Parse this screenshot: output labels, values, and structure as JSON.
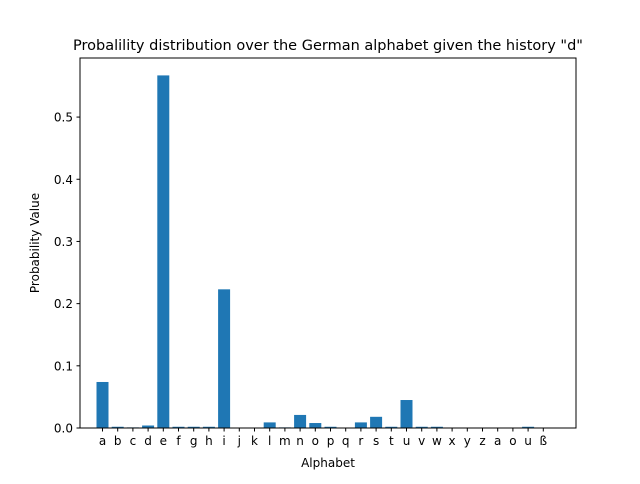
{
  "chart_data": {
    "type": "bar",
    "title": "Probalility distribution over the German alphabet given the history \"d\"",
    "xlabel": "Alphabet",
    "ylabel": "Probability Value",
    "categories": [
      "a",
      "b",
      "c",
      "d",
      "e",
      "f",
      "g",
      "h",
      "i",
      "j",
      "k",
      "l",
      "m",
      "n",
      "o",
      "p",
      "q",
      "r",
      "s",
      "t",
      "u",
      "v",
      "w",
      "x",
      "y",
      "z",
      "a",
      "o",
      "u",
      "ß"
    ],
    "values": [
      0.074,
      0.002,
      0.001,
      0.004,
      0.567,
      0.002,
      0.002,
      0.002,
      0.223,
      0.0005,
      0.0005,
      0.009,
      0.001,
      0.021,
      0.008,
      0.002,
      0.0005,
      0.009,
      0.018,
      0.002,
      0.045,
      0.002,
      0.002,
      0.0005,
      0.0005,
      0.0005,
      0.0005,
      0.0005,
      0.002,
      0.0005
    ],
    "ylim": [
      0,
      0.595
    ],
    "yticks": [
      0.0,
      0.1,
      0.2,
      0.3,
      0.4,
      0.5
    ],
    "ytick_labels": [
      "0.0",
      "0.1",
      "0.2",
      "0.3",
      "0.4",
      "0.5"
    ],
    "grid": false,
    "bar_color": "#1f77b4"
  }
}
